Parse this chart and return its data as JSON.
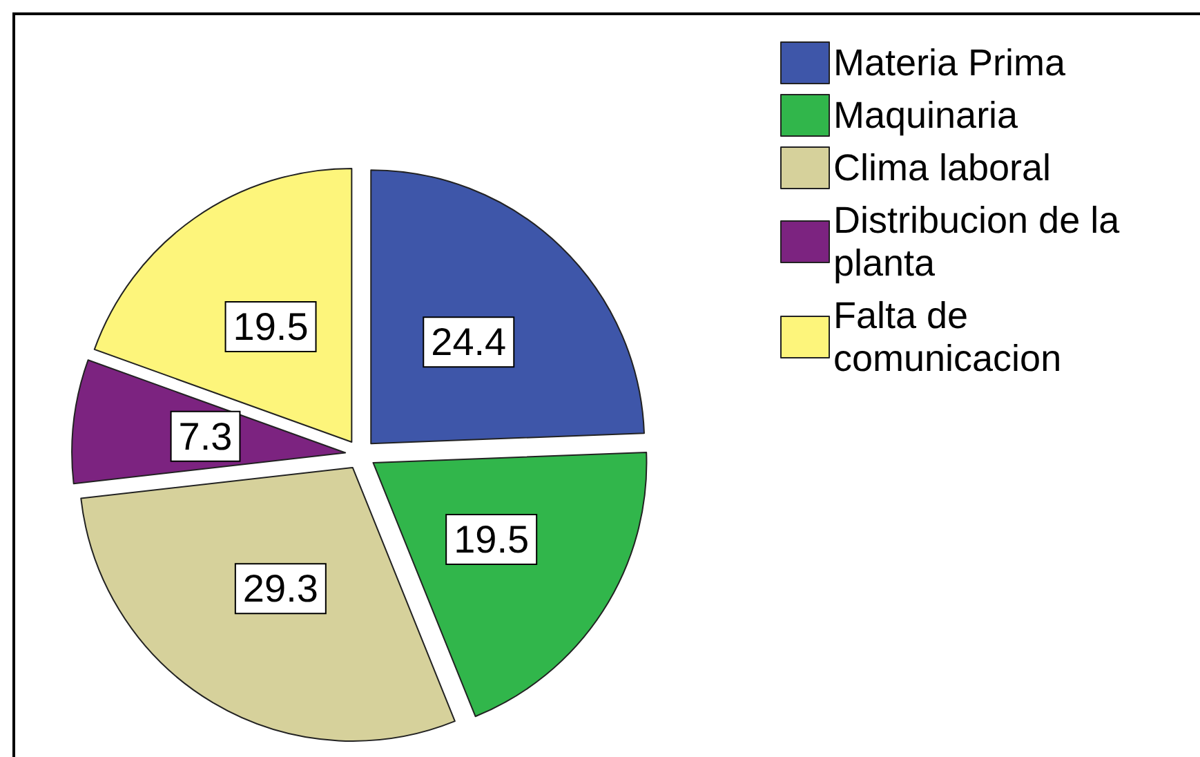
{
  "chart_data": {
    "type": "pie",
    "categories": [
      "Materia Prima",
      "Maquinaria",
      "Clima laboral",
      "Distribucion de la planta",
      "Falta de comunicacion"
    ],
    "values": [
      24.4,
      19.5,
      29.3,
      7.3,
      19.5
    ],
    "colors": [
      "#3e56a9",
      "#31b64b",
      "#d6d19b",
      "#7c2380",
      "#fdf57b"
    ],
    "data_labels": true,
    "legend": "top right"
  }
}
